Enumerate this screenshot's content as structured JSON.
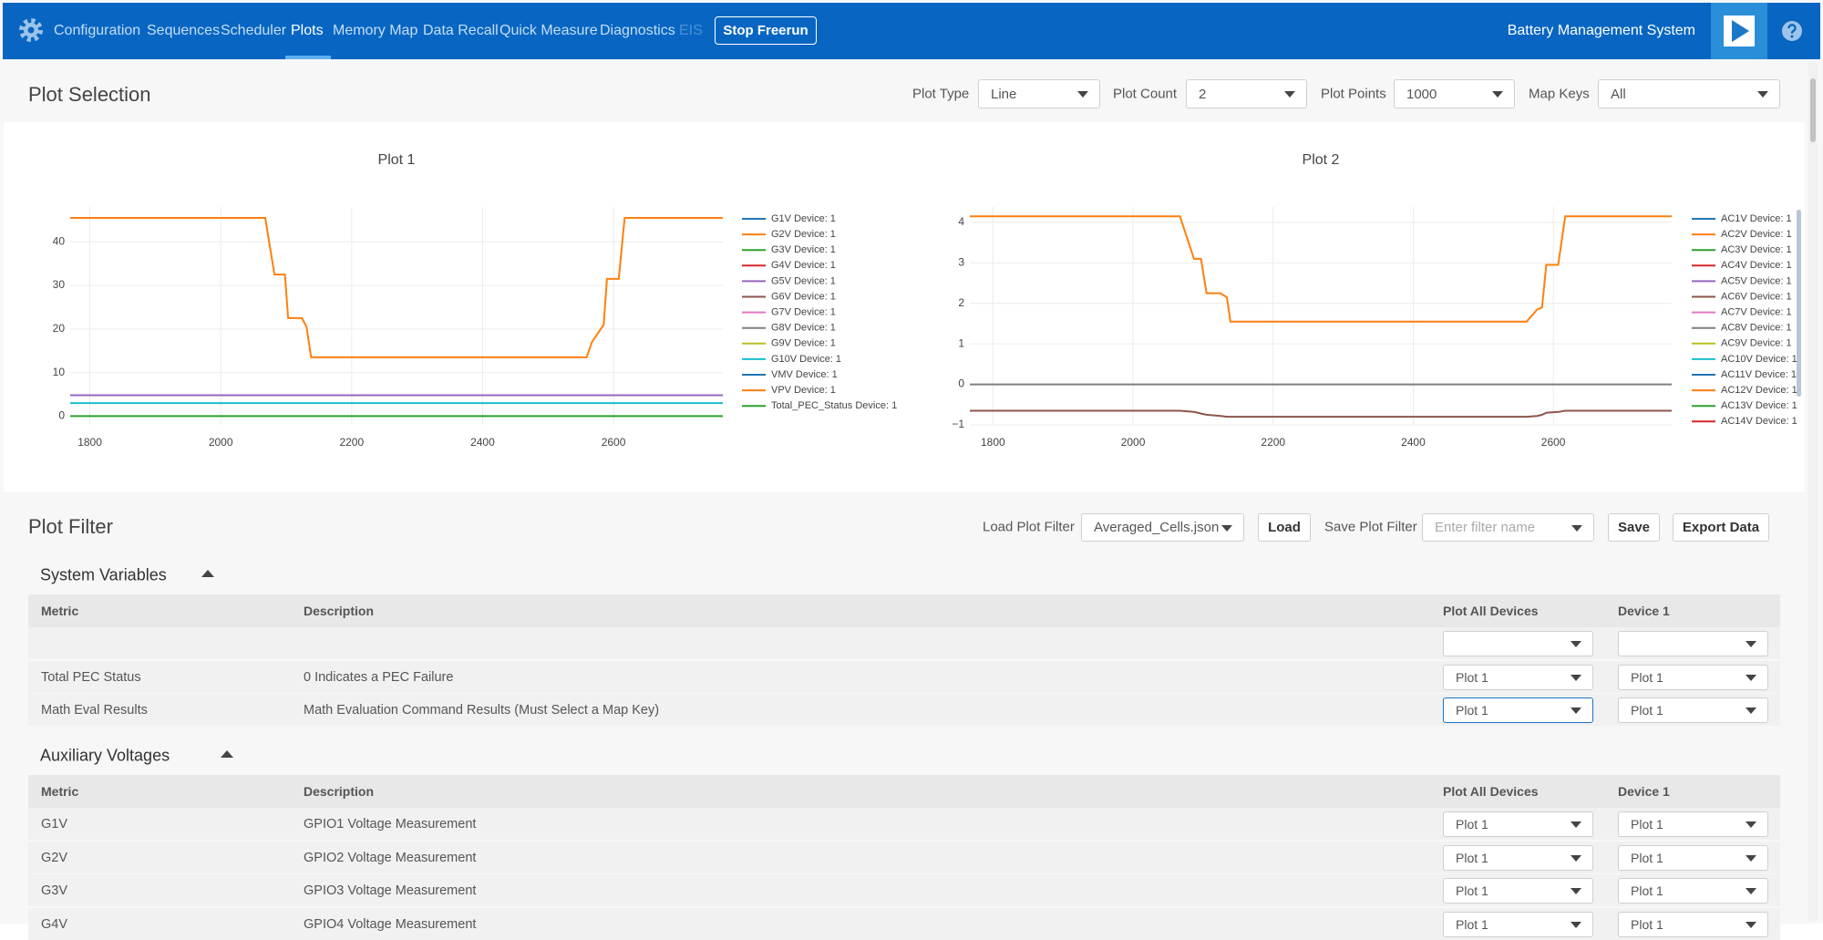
{
  "nav": {
    "items": [
      "Configuration",
      "Sequences",
      "Scheduler",
      "Plots",
      "Memory Map",
      "Data Recall",
      "Quick Measure",
      "Diagnostics",
      "EIS"
    ],
    "active": "Plots",
    "button": "Stop Freerun",
    "app_title": "Battery Management System"
  },
  "plot_selection": {
    "title": "Plot Selection",
    "controls": [
      {
        "label": "Plot Type",
        "value": "Line"
      },
      {
        "label": "Plot Count",
        "value": "2"
      },
      {
        "label": "Plot Points",
        "value": "1000"
      },
      {
        "label": "Map Keys",
        "value": "All"
      }
    ]
  },
  "chart_data": [
    {
      "type": "line",
      "title": "Plot 1",
      "grid": true,
      "x": [
        1770,
        2068,
        2082,
        2098,
        2103,
        2124,
        2131,
        2138,
        2559,
        2567,
        2585,
        2590,
        2608,
        2617,
        2767
      ],
      "xlim": [
        1770,
        2767
      ],
      "xticks": [
        1800,
        2000,
        2200,
        2400,
        2600
      ],
      "ylim": [
        -2,
        48
      ],
      "yticks": [
        0,
        10,
        20,
        30,
        40
      ],
      "series": [
        {
          "name": "G1V Device: 1",
          "color": "#1f77b4",
          "values": [
            null,
            null,
            null,
            null,
            null,
            null,
            null,
            null,
            null,
            null,
            null,
            null,
            null,
            null,
            null
          ]
        },
        {
          "name": "G2V Device: 1",
          "color": "#ff7f0e",
          "values": [
            45.5,
            45.5,
            32.5,
            32.5,
            22.5,
            22.5,
            20.5,
            13.5,
            13.5,
            17,
            21,
            31.5,
            31.5,
            45.5,
            45.5
          ]
        },
        {
          "name": "G3V Device: 1",
          "color": "#2ca02c",
          "values": [
            null,
            null,
            null,
            null,
            null,
            null,
            null,
            null,
            null,
            null,
            null,
            null,
            null,
            null,
            null
          ]
        },
        {
          "name": "G4V Device: 1",
          "color": "#d62728",
          "values": [
            null,
            null,
            null,
            null,
            null,
            null,
            null,
            null,
            null,
            null,
            null,
            null,
            null,
            null,
            null
          ]
        },
        {
          "name": "G5V Device: 1",
          "color": "#9467bd",
          "values": [
            4.8,
            4.8,
            4.8,
            4.8,
            4.8,
            4.8,
            4.8,
            4.8,
            4.8,
            4.8,
            4.8,
            4.8,
            4.8,
            4.8,
            4.8
          ]
        },
        {
          "name": "G6V Device: 1",
          "color": "#8c564b",
          "values": [
            null,
            null,
            null,
            null,
            null,
            null,
            null,
            null,
            null,
            null,
            null,
            null,
            null,
            null,
            null
          ]
        },
        {
          "name": "G7V Device: 1",
          "color": "#e377c2",
          "values": [
            null,
            null,
            null,
            null,
            null,
            null,
            null,
            null,
            null,
            null,
            null,
            null,
            null,
            null,
            null
          ]
        },
        {
          "name": "G8V Device: 1",
          "color": "#7f7f7f",
          "values": [
            null,
            null,
            null,
            null,
            null,
            null,
            null,
            null,
            null,
            null,
            null,
            null,
            null,
            null,
            null
          ]
        },
        {
          "name": "G9V Device: 1",
          "color": "#bcbd22",
          "values": [
            null,
            null,
            null,
            null,
            null,
            null,
            null,
            null,
            null,
            null,
            null,
            null,
            null,
            null,
            null
          ]
        },
        {
          "name": "G10V Device: 1",
          "color": "#17becf",
          "values": [
            3,
            3,
            3,
            3,
            3,
            3,
            3,
            3,
            3,
            3,
            3,
            3,
            3,
            3,
            3
          ]
        },
        {
          "name": "VMV Device: 1",
          "color": "#1f77b4",
          "values": [
            null,
            null,
            null,
            null,
            null,
            null,
            null,
            null,
            null,
            null,
            null,
            null,
            null,
            null,
            null
          ]
        },
        {
          "name": "VPV Device: 1",
          "color": "#ff7f0e",
          "values": [
            null,
            null,
            null,
            null,
            null,
            null,
            null,
            null,
            null,
            null,
            null,
            null,
            null,
            null,
            null
          ]
        },
        {
          "name": "Total_PEC_Status Device: 1",
          "color": "#2ca02c",
          "values": [
            0,
            0,
            0,
            0,
            0,
            0,
            0,
            0,
            0,
            0,
            0,
            0,
            0,
            0,
            0
          ]
        }
      ]
    },
    {
      "type": "line",
      "title": "Plot 2",
      "grid": true,
      "x": [
        1767,
        2067,
        2087,
        2097,
        2105,
        2125,
        2134,
        2139,
        2562,
        2577,
        2584,
        2590,
        2607,
        2617,
        2769
      ],
      "xlim": [
        1767,
        2769
      ],
      "xticks": [
        1800,
        2000,
        2200,
        2400,
        2600
      ],
      "ylim": [
        -1,
        4.38
      ],
      "yticks": [
        {
          "value": -1,
          "label": "−1"
        },
        0,
        1,
        2,
        3,
        4
      ],
      "series": [
        {
          "name": "AC1V Device: 1",
          "color": "#1f77b4",
          "values": [
            null,
            null,
            null,
            null,
            null,
            null,
            null,
            null,
            null,
            null,
            null,
            null,
            null,
            null,
            null
          ]
        },
        {
          "name": "AC2V Device: 1",
          "color": "#ff7f0e",
          "values": [
            4.15,
            4.15,
            3.1,
            3.1,
            2.25,
            2.25,
            2.15,
            1.55,
            1.55,
            1.85,
            1.9,
            2.95,
            2.95,
            4.15,
            4.15
          ]
        },
        {
          "name": "AC3V Device: 1",
          "color": "#2ca02c",
          "values": [
            null,
            null,
            null,
            null,
            null,
            null,
            null,
            null,
            null,
            null,
            null,
            null,
            null,
            null,
            null
          ]
        },
        {
          "name": "AC4V Device: 1",
          "color": "#d62728",
          "values": [
            null,
            null,
            null,
            null,
            null,
            null,
            null,
            null,
            null,
            null,
            null,
            null,
            null,
            null,
            null
          ]
        },
        {
          "name": "AC5V Device: 1",
          "color": "#9467bd",
          "values": [
            null,
            null,
            null,
            null,
            null,
            null,
            null,
            null,
            null,
            null,
            null,
            null,
            null,
            null,
            null
          ]
        },
        {
          "name": "AC6V Device: 1",
          "color": "#8c564b",
          "values": [
            -0.65,
            -0.65,
            -0.68,
            -0.72,
            -0.75,
            -0.78,
            -0.8,
            -0.8,
            -0.8,
            -0.78,
            -0.75,
            -0.7,
            -0.68,
            -0.65,
            -0.65
          ]
        },
        {
          "name": "AC7V Device: 1",
          "color": "#e377c2",
          "values": [
            null,
            null,
            null,
            null,
            null,
            null,
            null,
            null,
            null,
            null,
            null,
            null,
            null,
            null,
            null
          ]
        },
        {
          "name": "AC8V Device: 1",
          "color": "#7f7f7f",
          "values": [
            0,
            0,
            0,
            0,
            0,
            0,
            0,
            0,
            0,
            0,
            0,
            0,
            0,
            0,
            0
          ]
        },
        {
          "name": "AC9V Device: 1",
          "color": "#bcbd22",
          "values": [
            null,
            null,
            null,
            null,
            null,
            null,
            null,
            null,
            null,
            null,
            null,
            null,
            null,
            null,
            null
          ]
        },
        {
          "name": "AC10V Device: 1",
          "color": "#17becf",
          "values": [
            null,
            null,
            null,
            null,
            null,
            null,
            null,
            null,
            null,
            null,
            null,
            null,
            null,
            null,
            null
          ]
        },
        {
          "name": "AC11V Device: 1",
          "color": "#1f77b4",
          "values": [
            null,
            null,
            null,
            null,
            null,
            null,
            null,
            null,
            null,
            null,
            null,
            null,
            null,
            null,
            null
          ]
        },
        {
          "name": "AC12V Device: 1",
          "color": "#ff7f0e",
          "values": [
            null,
            null,
            null,
            null,
            null,
            null,
            null,
            null,
            null,
            null,
            null,
            null,
            null,
            null,
            null
          ]
        },
        {
          "name": "AC13V Device: 1",
          "color": "#2ca02c",
          "values": [
            null,
            null,
            null,
            null,
            null,
            null,
            null,
            null,
            null,
            null,
            null,
            null,
            null,
            null,
            null
          ]
        },
        {
          "name": "AC14V Device: 1",
          "color": "#d62728",
          "values": [
            null,
            null,
            null,
            null,
            null,
            null,
            null,
            null,
            null,
            null,
            null,
            null,
            null,
            null,
            null
          ]
        }
      ]
    }
  ],
  "plot_filter": {
    "title": "Plot Filter",
    "load_label": "Load Plot Filter",
    "load_value": "Averaged_Cells.json",
    "load_button": "Load",
    "save_label": "Save Plot Filter",
    "save_placeholder": "Enter filter name",
    "save_button": "Save",
    "export_button": "Export Data"
  },
  "sections": [
    {
      "title": "System Variables",
      "columns": [
        "Metric",
        "Description",
        "Plot All Devices",
        "Device 1"
      ],
      "rows": [
        [
          null,
          null,
          null,
          null
        ],
        [
          "Total PEC Status",
          "0 Indicates a PEC Failure",
          "Plot 1",
          "Plot 1"
        ],
        [
          "Math Eval Results",
          "Math Evaluation Command Results (Must Select a Map Key)",
          "Plot 1",
          "Plot 1"
        ]
      ]
    },
    {
      "title": "Auxiliary Voltages",
      "columns": [
        "Metric",
        "Description",
        "Plot All Devices",
        "Device 1"
      ],
      "rows": [
        [
          "G1V",
          "GPIO1 Voltage Measurement",
          "Plot 1",
          "Plot 1"
        ],
        [
          "G2V",
          "GPIO2 Voltage Measurement",
          "Plot 1",
          "Plot 1"
        ],
        [
          "G3V",
          "GPIO3 Voltage Measurement",
          "Plot 1",
          "Plot 1"
        ],
        [
          "G4V",
          "GPIO4 Voltage Measurement",
          "Plot 1",
          "Plot 1"
        ]
      ]
    }
  ]
}
